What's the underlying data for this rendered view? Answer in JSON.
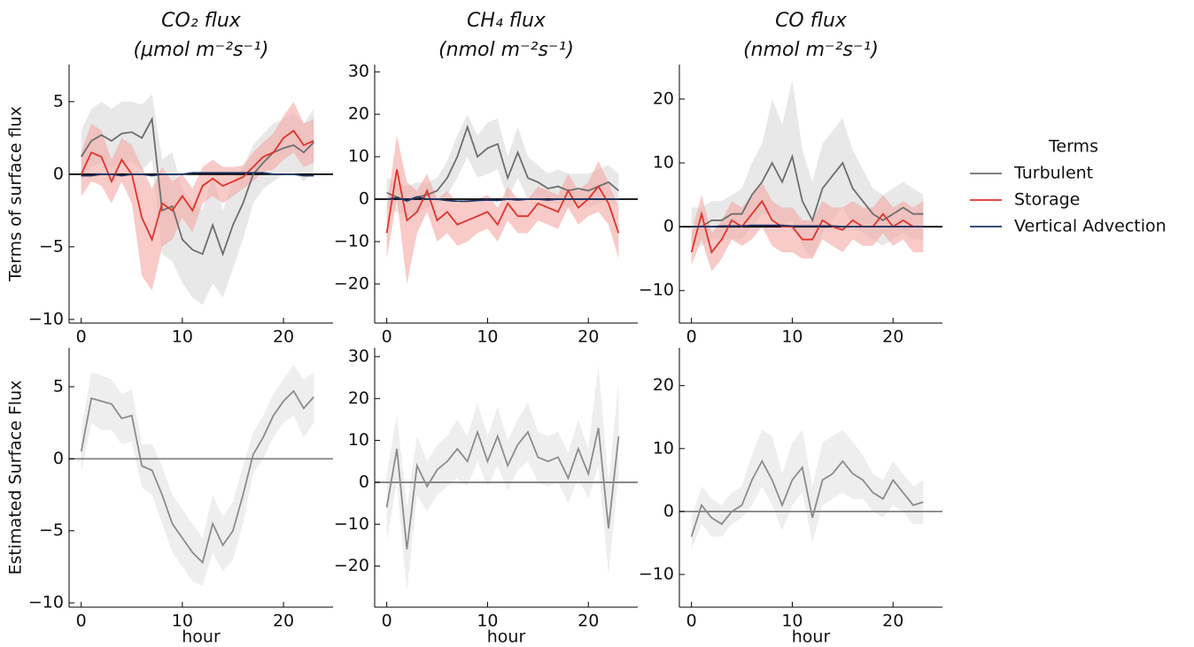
{
  "chart_data": [
    {
      "type": "line",
      "title": "CO₂ flux",
      "subtitle": "(μmol m⁻²s⁻¹)",
      "ylabel": "Terms of surface flux",
      "legend_title": "Terms",
      "legend": "right",
      "x": [
        0,
        1,
        2,
        3,
        4,
        5,
        6,
        7,
        8,
        9,
        10,
        11,
        12,
        13,
        14,
        15,
        16,
        17,
        18,
        19,
        20,
        21,
        22,
        23
      ],
      "xlim": [
        -1.2,
        24.9
      ],
      "xticks": [
        0,
        10,
        20
      ],
      "ylim": [
        -10.25,
        7.55
      ],
      "yticks": [
        {
          "value": -10,
          "label": "−10"
        },
        {
          "value": -5,
          "label": "−5"
        },
        0,
        5
      ],
      "hline": {
        "y": 0,
        "color": "#000000"
      },
      "series": [
        {
          "name": "Turbulent",
          "color": "#6e6e6e",
          "band_color": "#d9d9d9",
          "values": [
            1.2,
            2.3,
            2.7,
            2.3,
            2.8,
            2.9,
            2.5,
            3.8,
            -2.5,
            -2.2,
            -4.5,
            -5.2,
            -5.5,
            -3.5,
            -5.5,
            -3.5,
            -2.0,
            0.0,
            0.8,
            1.5,
            1.8,
            2.0,
            1.5,
            2.2
          ],
          "lower": [
            -0.5,
            0.5,
            0.8,
            0.3,
            0.8,
            0.8,
            0.3,
            1.0,
            -5.5,
            -6.0,
            -7.5,
            -8.5,
            -9.0,
            -7.5,
            -8.5,
            -6.5,
            -4.5,
            -2.0,
            -1.0,
            -0.5,
            0.0,
            0.2,
            -0.5,
            0.2
          ],
          "upper": [
            3.0,
            4.5,
            5.0,
            4.5,
            5.0,
            5.0,
            4.8,
            5.5,
            1.0,
            1.5,
            -1.0,
            -2.0,
            -2.5,
            0.0,
            -2.5,
            -0.5,
            0.5,
            2.0,
            2.8,
            3.5,
            3.8,
            4.2,
            3.5,
            4.5
          ]
        },
        {
          "name": "Storage",
          "color": "#e0342a",
          "band_color": "#f3a7a3",
          "values": [
            0,
            1.5,
            1.2,
            -0.5,
            1.0,
            0,
            -3.0,
            -4.5,
            -2.0,
            -2.5,
            -1.5,
            -2.5,
            -0.8,
            -0.3,
            -0.8,
            -0.5,
            -0.2,
            0.5,
            1.2,
            1.5,
            2.5,
            3.0,
            2.0,
            2.3
          ],
          "lower": [
            -1.5,
            -0.5,
            -0.8,
            -2.0,
            -0.5,
            -2.0,
            -7.0,
            -8.0,
            -5.0,
            -4.5,
            -3.0,
            -4.0,
            -2.0,
            -1.5,
            -2.0,
            -1.5,
            -1.0,
            -0.5,
            0.2,
            0.3,
            1.0,
            1.5,
            0.5,
            0.8
          ],
          "upper": [
            1.5,
            3.5,
            3.0,
            1.0,
            2.5,
            2.0,
            0.5,
            -1.0,
            0.5,
            -0.5,
            0.0,
            -1.0,
            0.5,
            1.0,
            0.5,
            0.5,
            0.6,
            1.5,
            2.2,
            2.8,
            4.0,
            5.0,
            3.5,
            3.8
          ]
        },
        {
          "name": "Vertical Advection",
          "color": "#1c3466",
          "values": [
            -0.1,
            -0.1,
            0,
            0,
            -0.1,
            0,
            0,
            -0.1,
            0,
            0,
            0,
            0.1,
            0.1,
            0.1,
            0.1,
            0.1,
            0.1,
            0.1,
            0.1,
            0,
            0,
            0,
            -0.1,
            -0.1
          ]
        }
      ]
    },
    {
      "type": "line",
      "title": "CH₄ flux",
      "subtitle": "(nmol m⁻²s⁻¹)",
      "x": [
        0,
        1,
        2,
        3,
        4,
        5,
        6,
        7,
        8,
        9,
        10,
        11,
        12,
        13,
        14,
        15,
        16,
        17,
        18,
        19,
        20,
        21,
        22,
        23
      ],
      "xlim": [
        -1.2,
        24.9
      ],
      "xticks": [
        0,
        10,
        20
      ],
      "ylim": [
        -29.2,
        31.7
      ],
      "yticks": [
        {
          "value": -20,
          "label": "−20"
        },
        {
          "value": -10,
          "label": "−10"
        },
        0,
        10,
        20,
        30
      ],
      "hline": {
        "y": 0,
        "color": "#000000"
      },
      "series": [
        {
          "name": "Turbulent",
          "color": "#6e6e6e",
          "band_color": "#d9d9d9",
          "values": [
            1.5,
            0.5,
            -0.5,
            0.5,
            1.0,
            2.0,
            5.0,
            10.0,
            17.0,
            10.0,
            12.0,
            13.0,
            5.0,
            11.0,
            5.0,
            4.0,
            2.5,
            3.0,
            2.0,
            2.5,
            2.0,
            3.0,
            4.0,
            2.0
          ],
          "lower": [
            -2,
            -3,
            -4,
            -3,
            -2,
            -1,
            1,
            5,
            10,
            5,
            6,
            7,
            0,
            5,
            0,
            0,
            -1,
            -1,
            -2,
            -1,
            -2,
            -1,
            0,
            -2
          ],
          "upper": [
            5,
            4,
            3,
            4,
            4,
            5,
            9,
            15,
            20,
            15,
            18,
            19,
            10,
            17,
            10,
            8,
            6,
            7,
            6,
            6,
            6,
            7,
            8,
            6
          ]
        },
        {
          "name": "Storage",
          "color": "#e0342a",
          "band_color": "#f3a7a3",
          "values": [
            -8,
            7,
            -5,
            -3,
            2,
            -5,
            -3,
            -6,
            -5,
            -4,
            -3,
            -6,
            -1,
            -4,
            -4,
            -1,
            -2,
            -3,
            2,
            -2,
            0,
            3,
            -1,
            -8
          ],
          "lower": [
            -14,
            0,
            -20,
            -8,
            -3,
            -10,
            -8,
            -11,
            -10,
            -8,
            -7,
            -10,
            -5,
            -8,
            -8,
            -5,
            -6,
            -7,
            -2,
            -6,
            -4,
            -3,
            -6,
            -14
          ],
          "upper": [
            -2,
            15,
            4,
            2,
            6,
            0,
            2,
            -1,
            0,
            0,
            1,
            -2,
            3,
            0,
            0,
            3,
            2,
            1,
            6,
            2,
            4,
            9,
            4,
            -2
          ]
        },
        {
          "name": "Vertical Advection",
          "color": "#1c3466",
          "values": [
            0,
            0.3,
            -0.3,
            0.5,
            0,
            0,
            -0.3,
            -0.5,
            -0.5,
            -0.3,
            -0.2,
            -0.3,
            0,
            -0.2,
            0,
            0,
            -0.2,
            0,
            0,
            0,
            0,
            0,
            0,
            0
          ]
        }
      ]
    },
    {
      "type": "line",
      "title": "CO flux",
      "subtitle": "(nmol m⁻²s⁻¹)",
      "x": [
        0,
        1,
        2,
        3,
        4,
        5,
        6,
        7,
        8,
        9,
        10,
        11,
        12,
        13,
        14,
        15,
        16,
        17,
        18,
        19,
        20,
        21,
        22,
        23
      ],
      "xlim": [
        -1.2,
        24.9
      ],
      "xticks": [
        0,
        10,
        20
      ],
      "ylim": [
        -15.1,
        25.4
      ],
      "yticks": [
        {
          "value": -10,
          "label": "−10"
        },
        0,
        10,
        20
      ],
      "hline": {
        "y": 0,
        "color": "#000000"
      },
      "series": [
        {
          "name": "Turbulent",
          "color": "#6e6e6e",
          "band_color": "#d9d9d9",
          "values": [
            0,
            0,
            1,
            1,
            2,
            2,
            5,
            7,
            10,
            7,
            11,
            4,
            1,
            6,
            8,
            10,
            6,
            4,
            2,
            1,
            2,
            3,
            2,
            2
          ],
          "lower": [
            -3,
            -3,
            -2,
            -2,
            -2,
            -2,
            0,
            2,
            2,
            0,
            1,
            -3,
            -5,
            -1,
            1,
            3,
            0,
            -1,
            -2,
            -3,
            -2,
            -1,
            -2,
            -2
          ],
          "upper": [
            3,
            3,
            4,
            4,
            5,
            6,
            10,
            13,
            20,
            16,
            23,
            12,
            7,
            13,
            15,
            17,
            12,
            9,
            6,
            5,
            6,
            7,
            6,
            5
          ]
        },
        {
          "name": "Storage",
          "color": "#e0342a",
          "band_color": "#f3a7a3",
          "values": [
            -4,
            2,
            -4,
            -2,
            1,
            0,
            2,
            4,
            1,
            0,
            0,
            -2,
            -2,
            1,
            0,
            -0.5,
            1,
            0,
            0,
            2,
            0,
            1,
            0,
            0
          ],
          "lower": [
            -6,
            -2,
            -7,
            -5,
            -2,
            -3,
            -2,
            0,
            -3,
            -4,
            -4,
            -5,
            -5,
            -2,
            -3,
            -4,
            -2,
            -3,
            -3,
            -1,
            -3,
            -2,
            -4,
            -4
          ],
          "upper": [
            -1,
            5,
            -1,
            1,
            4,
            3,
            5,
            7,
            4,
            3,
            3,
            1,
            1,
            4,
            3,
            3,
            4,
            3,
            3,
            5,
            3,
            4,
            3,
            4
          ]
        },
        {
          "name": "Vertical Advection",
          "color": "#1c3466",
          "values": [
            0,
            0,
            0,
            0.1,
            0.1,
            0.1,
            0.2,
            0.2,
            0.2,
            0.2,
            0.1,
            0.1,
            0.1,
            0.1,
            0.1,
            0,
            0,
            0,
            0,
            0,
            0,
            0,
            0,
            0
          ]
        }
      ]
    },
    {
      "type": "line",
      "ylabel": "Estimated Surface Flux",
      "xlabel": "hour",
      "x": [
        0,
        1,
        2,
        3,
        4,
        5,
        6,
        7,
        8,
        9,
        10,
        11,
        12,
        13,
        14,
        15,
        16,
        17,
        18,
        19,
        20,
        21,
        22,
        23
      ],
      "xlim": [
        -1.2,
        24.9
      ],
      "xticks": [
        0,
        10,
        20
      ],
      "ylim": [
        -10.3,
        7.7
      ],
      "yticks": [
        {
          "value": -10,
          "label": "−10"
        },
        {
          "value": -5,
          "label": "−5"
        },
        0,
        5
      ],
      "hline": {
        "y": 0,
        "color": "#808080"
      },
      "series": [
        {
          "color": "#8c8c8c",
          "band_color": "#e3e3e3",
          "values": [
            0.5,
            4.2,
            4.0,
            3.8,
            2.8,
            3.0,
            -0.5,
            -0.8,
            -2.5,
            -4.5,
            -5.5,
            -6.5,
            -7.2,
            -4.5,
            -6.0,
            -5.0,
            -2.5,
            0.3,
            1.5,
            3.0,
            4.0,
            4.7,
            3.5,
            4.3
          ],
          "lower": [
            -1.0,
            2.5,
            2.0,
            2.0,
            1.0,
            1.2,
            -2.0,
            -2.5,
            -4.5,
            -6.5,
            -7.5,
            -8.5,
            -8.8,
            -6.5,
            -7.8,
            -7.0,
            -4.5,
            -1.0,
            0.0,
            1.5,
            2.5,
            3.0,
            1.5,
            2.5
          ],
          "upper": [
            2.0,
            6.0,
            5.8,
            5.5,
            4.5,
            4.8,
            1.0,
            1.0,
            -0.5,
            -2.5,
            -3.5,
            -4.5,
            -5.5,
            -2.5,
            -4.0,
            -3.0,
            -0.5,
            1.8,
            3.0,
            4.5,
            5.5,
            6.5,
            5.5,
            6.0
          ]
        }
      ]
    },
    {
      "type": "line",
      "xlabel": "hour",
      "x": [
        0,
        1,
        2,
        3,
        4,
        5,
        6,
        7,
        8,
        9,
        10,
        11,
        12,
        13,
        14,
        15,
        16,
        17,
        18,
        19,
        20,
        21,
        22,
        23
      ],
      "xlim": [
        -1.2,
        24.9
      ],
      "xticks": [
        0,
        10,
        20
      ],
      "ylim": [
        -29.8,
        32.1
      ],
      "yticks": [
        {
          "value": -20,
          "label": "−20"
        },
        {
          "value": -10,
          "label": "−10"
        },
        0,
        10,
        20,
        30
      ],
      "hline": {
        "y": 0,
        "color": "#808080"
      },
      "series": [
        {
          "color": "#8c8c8c",
          "band_color": "#e3e3e3",
          "values": [
            -6,
            8,
            -16,
            4,
            -1,
            3,
            5,
            8,
            5,
            12,
            5,
            11,
            4,
            9,
            12,
            6,
            5,
            6,
            1,
            8,
            2,
            13,
            -11,
            11
          ],
          "lower": [
            -14,
            0,
            -26,
            -3,
            -7,
            -3,
            -1,
            1,
            -1,
            5,
            -1,
            4,
            -2,
            3,
            5,
            0,
            -1,
            0,
            -5,
            1,
            -4,
            4,
            -22,
            2
          ],
          "upper": [
            2,
            16,
            -6,
            11,
            5,
            9,
            11,
            15,
            11,
            19,
            11,
            18,
            10,
            15,
            19,
            12,
            11,
            12,
            7,
            15,
            8,
            28,
            0,
            24
          ]
        }
      ]
    },
    {
      "type": "line",
      "xlabel": "hour",
      "x": [
        0,
        1,
        2,
        3,
        4,
        5,
        6,
        7,
        8,
        9,
        10,
        11,
        12,
        13,
        14,
        15,
        16,
        17,
        18,
        19,
        20,
        21,
        22,
        23
      ],
      "xlim": [
        -1.2,
        24.9
      ],
      "xticks": [
        0,
        10,
        20
      ],
      "ylim": [
        -15.2,
        26.0
      ],
      "yticks": [
        {
          "value": -10,
          "label": "−10"
        },
        0,
        10,
        20
      ],
      "hline": {
        "y": 0,
        "color": "#808080"
      },
      "series": [
        {
          "color": "#8c8c8c",
          "band_color": "#e3e3e3",
          "values": [
            -4,
            1,
            -1,
            -2,
            0,
            1,
            5,
            8,
            5,
            1,
            5,
            7,
            -1,
            5,
            6,
            8,
            6,
            5,
            3,
            2,
            5,
            3,
            1,
            1.5
          ],
          "lower": [
            -6,
            -2,
            -4,
            -4,
            -2,
            -1,
            1,
            4,
            1,
            -3,
            1,
            3,
            -5,
            1,
            2,
            3,
            2,
            2,
            0,
            -1,
            1,
            0,
            -2,
            -2
          ],
          "upper": [
            -1,
            4,
            2,
            1,
            3,
            4,
            9,
            13,
            12,
            6,
            11,
            13,
            4,
            11,
            12,
            13,
            11,
            9,
            6,
            5,
            8,
            6,
            4,
            5
          ]
        }
      ]
    }
  ]
}
